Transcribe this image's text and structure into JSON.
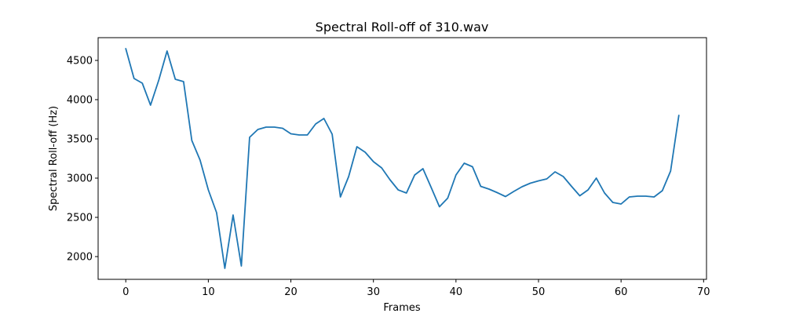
{
  "chart_data": {
    "type": "line",
    "title": "Spectral Roll-off of 310.wav",
    "xlabel": "Frames",
    "ylabel": "Spectral Roll-off (Hz)",
    "xlim": [
      -3.35,
      70.35
    ],
    "ylim": [
      1710,
      4790
    ],
    "xticks": [
      0,
      10,
      20,
      30,
      40,
      50,
      60,
      70
    ],
    "yticks": [
      2000,
      2500,
      3000,
      3500,
      4000,
      4500
    ],
    "grid": false,
    "line_color": "#1f77b4",
    "series": [
      {
        "x": [
          0,
          1,
          2,
          3,
          4,
          5,
          6,
          7,
          8,
          9,
          10,
          11,
          12,
          13,
          14,
          15,
          16,
          17,
          18,
          19,
          20,
          21,
          22,
          23,
          24,
          25,
          26,
          27,
          28,
          29,
          30,
          31,
          32,
          33,
          34,
          35,
          36,
          37,
          38,
          39,
          40,
          41,
          42,
          43,
          44,
          45,
          46,
          47,
          48,
          49,
          50,
          51,
          52,
          53,
          54,
          55,
          56,
          57,
          58,
          59,
          60,
          61,
          62,
          63,
          64,
          65,
          66,
          67
        ],
        "values": [
          4650,
          4270,
          4210,
          3930,
          4250,
          4620,
          4260,
          4230,
          3480,
          3230,
          2850,
          2560,
          1850,
          2530,
          1880,
          3520,
          3620,
          3650,
          3650,
          3635,
          3565,
          3550,
          3550,
          3690,
          3760,
          3560,
          2760,
          3020,
          3400,
          3330,
          3210,
          3130,
          2980,
          2850,
          2810,
          3040,
          3120,
          2880,
          2635,
          2745,
          3040,
          3190,
          3145,
          2895,
          2860,
          2815,
          2765,
          2830,
          2890,
          2935,
          2965,
          2990,
          3080,
          3020,
          2895,
          2775,
          2850,
          3000,
          2810,
          2690,
          2670,
          2760,
          2770,
          2770,
          2760,
          2840,
          3090,
          3800
        ]
      }
    ]
  }
}
